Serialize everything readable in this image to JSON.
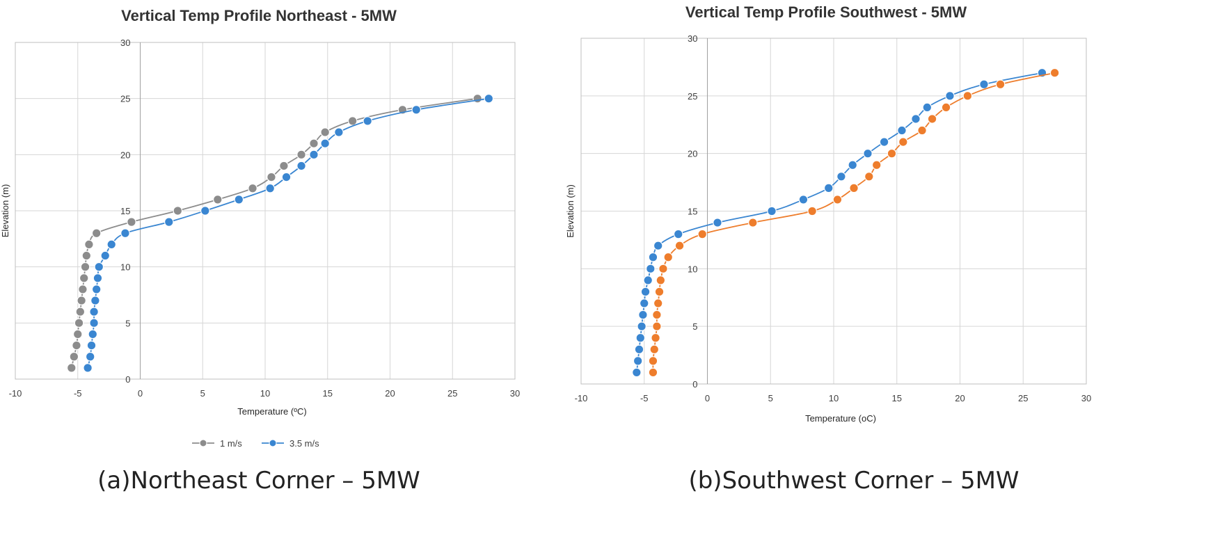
{
  "chart_data": [
    {
      "type": "line",
      "title": "Vertical Temp Profile Northeast - 5MW",
      "xlabel": "Temperature (ºC)",
      "ylabel": "Elevation (m)",
      "xlim": [
        -10,
        30
      ],
      "ylim": [
        0,
        30
      ],
      "xticks": [
        "-10",
        "-5",
        "0",
        "5",
        "10",
        "15",
        "20",
        "25",
        "30"
      ],
      "yticks": [
        "0",
        "5",
        "10",
        "15",
        "20",
        "25",
        "30"
      ],
      "grid": true,
      "legend": "bottom",
      "caption": "(a)Northeast Corner – 5MW",
      "series": [
        {
          "name": "1 m/s",
          "color": "#8c8c8c",
          "x": [
            -5.5,
            -5.3,
            -5.1,
            -5.0,
            -4.9,
            -4.8,
            -4.7,
            -4.6,
            -4.5,
            -4.4,
            -4.3,
            -4.1,
            -3.5,
            -0.7,
            3.0,
            6.2,
            9.0,
            10.5,
            11.5,
            12.9,
            13.9,
            14.8,
            17.0,
            21.0,
            27.0
          ],
          "y": [
            1,
            2,
            3,
            4,
            5,
            6,
            7,
            8,
            9,
            10,
            11,
            12,
            13,
            14,
            15,
            16,
            17,
            18,
            19,
            20,
            21,
            22,
            23,
            24,
            25
          ]
        },
        {
          "name": "3.5 m/s",
          "color": "#3a86d1",
          "x": [
            -4.2,
            -4.0,
            -3.9,
            -3.8,
            -3.7,
            -3.7,
            -3.6,
            -3.5,
            -3.4,
            -3.3,
            -2.8,
            -2.3,
            -1.2,
            2.3,
            5.2,
            7.9,
            10.4,
            11.7,
            12.9,
            13.9,
            14.8,
            15.9,
            18.2,
            22.1,
            27.9
          ],
          "y": [
            1,
            2,
            3,
            4,
            5,
            6,
            7,
            8,
            9,
            10,
            11,
            12,
            13,
            14,
            15,
            16,
            17,
            18,
            19,
            20,
            21,
            22,
            23,
            24,
            25
          ]
        }
      ]
    },
    {
      "type": "line",
      "title": "Vertical Temp Profile Southwest - 5MW",
      "xlabel": "Temperature (oC)",
      "ylabel": "Elevation (m)",
      "xlim": [
        -10,
        30
      ],
      "ylim": [
        0,
        30
      ],
      "xticks": [
        "-10",
        "-5",
        "0",
        "5",
        "10",
        "15",
        "20",
        "25",
        "30"
      ],
      "yticks": [
        "0",
        "5",
        "10",
        "15",
        "20",
        "25",
        "30"
      ],
      "grid": true,
      "legend": "none",
      "caption": "(b)Southwest Corner – 5MW",
      "series": [
        {
          "color": "#3a86d1",
          "x": [
            -5.6,
            -5.5,
            -5.4,
            -5.3,
            -5.2,
            -5.1,
            -5.0,
            -4.9,
            -4.7,
            -4.5,
            -4.3,
            -3.9,
            -2.3,
            0.8,
            5.1,
            7.6,
            9.6,
            10.6,
            11.5,
            12.7,
            14.0,
            15.4,
            16.5,
            17.4,
            19.2,
            21.9,
            26.5
          ],
          "y": [
            1,
            2,
            3,
            4,
            5,
            6,
            7,
            8,
            9,
            10,
            11,
            12,
            13,
            14,
            15,
            16,
            17,
            18,
            19,
            20,
            21,
            22,
            23,
            24,
            25,
            26,
            27
          ]
        },
        {
          "color": "#ee7d2c",
          "x": [
            -4.3,
            -4.3,
            -4.2,
            -4.1,
            -4.0,
            -4.0,
            -3.9,
            -3.8,
            -3.7,
            -3.5,
            -3.1,
            -2.2,
            -0.4,
            3.6,
            8.3,
            10.3,
            11.6,
            12.8,
            13.4,
            14.6,
            15.5,
            17.0,
            17.8,
            18.9,
            20.6,
            23.2,
            27.5
          ],
          "y": [
            1,
            2,
            3,
            4,
            5,
            6,
            7,
            8,
            9,
            10,
            11,
            12,
            13,
            14,
            15,
            16,
            17,
            18,
            19,
            20,
            21,
            22,
            23,
            24,
            25,
            26,
            27
          ]
        }
      ]
    }
  ]
}
